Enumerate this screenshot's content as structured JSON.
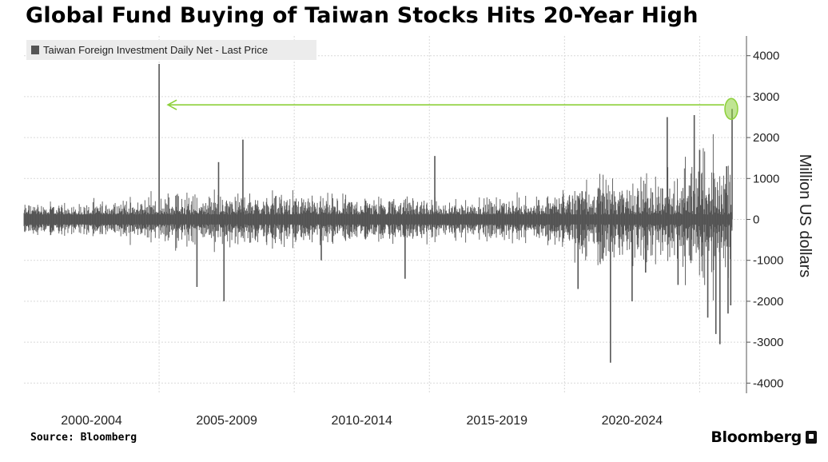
{
  "title": "Global Fund Buying of Taiwan Stocks Hits 20-Year High",
  "source": "Source: Bloomberg",
  "brand": "Bloomberg",
  "colors": {
    "series": "#555555",
    "arrow": "#8dd03a",
    "grid": "#d9d9d9"
  },
  "chart_data": {
    "type": "bar",
    "title": "Global Fund Buying of Taiwan Stocks Hits 20-Year High",
    "ylabel": "Million US dollars",
    "xlabel": "",
    "ylim": [
      -4500,
      4500
    ],
    "yticks": [
      4000,
      3000,
      2000,
      1000,
      0,
      -1000,
      -2000,
      -3000,
      -4000
    ],
    "ytick_labels": [
      "4000",
      "3000",
      "2000",
      "1000",
      "0",
      "-1000",
      "-2000",
      "-3000",
      "-4000"
    ],
    "x_range_years": [
      2000.0,
      2026.2
    ],
    "x_bands": [
      {
        "label": "2000-2004",
        "start": 2000,
        "end": 2005
      },
      {
        "label": "2005-2009",
        "start": 2005,
        "end": 2010
      },
      {
        "label": "2010-2014",
        "start": 2010,
        "end": 2015
      },
      {
        "label": "2015-2019",
        "start": 2015,
        "end": 2020
      },
      {
        "label": "2020-2024",
        "start": 2020,
        "end": 2025
      }
    ],
    "legend": {
      "label": "Taiwan Foreign Investment Daily Net - Last Price",
      "position": "top-left"
    },
    "grid": true,
    "series": [
      {
        "name": "Taiwan Foreign Investment Daily Net - Last Price",
        "note": "daily net flows approximated by amplitude envelope plus notable spikes",
        "envelope": [
          {
            "year": 2000.0,
            "amp": 350
          },
          {
            "year": 2002.0,
            "amp": 300
          },
          {
            "year": 2004.0,
            "amp": 450
          },
          {
            "year": 2006.0,
            "amp": 650
          },
          {
            "year": 2008.0,
            "amp": 600
          },
          {
            "year": 2010.0,
            "amp": 600
          },
          {
            "year": 2012.0,
            "amp": 500
          },
          {
            "year": 2014.0,
            "amp": 500
          },
          {
            "year": 2016.0,
            "amp": 450
          },
          {
            "year": 2018.0,
            "amp": 500
          },
          {
            "year": 2019.5,
            "amp": 600
          },
          {
            "year": 2020.3,
            "amp": 950
          },
          {
            "year": 2021.5,
            "amp": 1300
          },
          {
            "year": 2022.5,
            "amp": 1050
          },
          {
            "year": 2024.0,
            "amp": 1400
          },
          {
            "year": 2025.3,
            "amp": 1700
          },
          {
            "year": 2026.2,
            "amp": 1400
          }
        ],
        "spikes": [
          {
            "year": 2005.0,
            "value": 3800
          },
          {
            "year": 2006.4,
            "value": -1650
          },
          {
            "year": 2007.2,
            "value": 1400
          },
          {
            "year": 2007.4,
            "value": -2000
          },
          {
            "year": 2008.1,
            "value": 1950
          },
          {
            "year": 2011.0,
            "value": -1000
          },
          {
            "year": 2014.1,
            "value": -1450
          },
          {
            "year": 2015.2,
            "value": 1550
          },
          {
            "year": 2020.5,
            "value": -1700
          },
          {
            "year": 2021.7,
            "value": -3500
          },
          {
            "year": 2022.5,
            "value": -2000
          },
          {
            "year": 2023.0,
            "value": -1300
          },
          {
            "year": 2023.8,
            "value": 2500
          },
          {
            "year": 2024.2,
            "value": -1600
          },
          {
            "year": 2024.8,
            "value": 2550
          },
          {
            "year": 2025.0,
            "value": 1700
          },
          {
            "year": 2025.3,
            "value": -2400
          },
          {
            "year": 2025.6,
            "value": -2800
          },
          {
            "year": 2025.75,
            "value": -3050
          },
          {
            "year": 2026.0,
            "value": 1300
          },
          {
            "year": 2026.05,
            "value": -2300
          },
          {
            "year": 2026.15,
            "value": -2100
          },
          {
            "year": 2026.2,
            "value": 2700
          }
        ]
      }
    ],
    "annotations": [
      {
        "type": "arrow",
        "from_year": 2026.2,
        "to_year": 2005.0,
        "value": 2800
      },
      {
        "type": "highlight-ellipse",
        "year": 2026.2,
        "value": 2700
      }
    ]
  }
}
